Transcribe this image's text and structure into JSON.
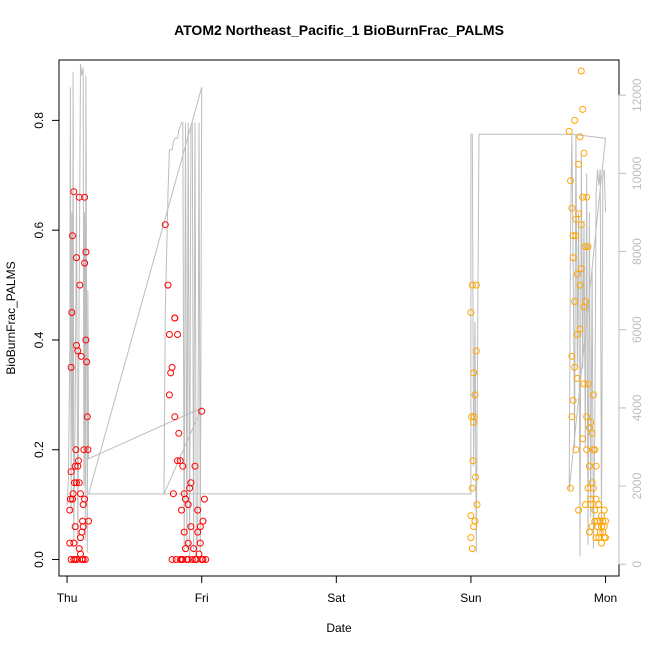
{
  "chart_data": {
    "type": "scatter",
    "title": "ATOM2 Northeast_Pacific_1 BioBurnFrac_PALMS",
    "xlabel": "Date",
    "ylabel": "BioBurnFrac_PALMS",
    "x_ticks": [
      "Thu",
      "Fri",
      "Sat",
      "Sun",
      "Mon"
    ],
    "xlim": [
      -0.06,
      4.1
    ],
    "ylim": [
      -0.03,
      0.91
    ],
    "y_ticks": [
      0.0,
      0.2,
      0.4,
      0.6,
      0.8
    ],
    "y2lim": [
      -300,
      12900
    ],
    "y2_ticks": [
      0,
      2000,
      4000,
      6000,
      8000,
      10000,
      12000
    ],
    "colors": {
      "series_red": "#ff0000",
      "series_orange": "#ffa500",
      "altitude_line": "#bdbdbd",
      "axis": "#000000"
    },
    "series": [
      {
        "color": "#ff0000",
        "points": [
          [
            0.02,
            0.09
          ],
          [
            0.02,
            0.03
          ],
          [
            0.025,
            0.11
          ],
          [
            0.03,
            0.16
          ],
          [
            0.03,
            0.35
          ],
          [
            0.035,
            0.45
          ],
          [
            0.04,
            0.59
          ],
          [
            0.045,
            0.12
          ],
          [
            0.05,
            0.67
          ],
          [
            0.05,
            0.0
          ],
          [
            0.055,
            0.14
          ],
          [
            0.06,
            0.17
          ],
          [
            0.06,
            0.06
          ],
          [
            0.065,
            0.2
          ],
          [
            0.07,
            0.39
          ],
          [
            0.07,
            0.55
          ],
          [
            0.075,
            0.0
          ],
          [
            0.08,
            0.38
          ],
          [
            0.085,
            0.18
          ],
          [
            0.09,
            0.02
          ],
          [
            0.09,
            0.66
          ],
          [
            0.095,
            0.5
          ],
          [
            0.1,
            0.12
          ],
          [
            0.1,
            0.04
          ],
          [
            0.105,
            0.37
          ],
          [
            0.11,
            0.0
          ],
          [
            0.115,
            0.07
          ],
          [
            0.12,
            0.06
          ],
          [
            0.12,
            0.1
          ],
          [
            0.125,
            0.2
          ],
          [
            0.13,
            0.66
          ],
          [
            0.13,
            0.54
          ],
          [
            0.135,
            0.0
          ],
          [
            0.14,
            0.4
          ],
          [
            0.14,
            0.56
          ],
          [
            0.145,
            0.36
          ],
          [
            0.15,
            0.26
          ],
          [
            0.155,
            0.2
          ],
          [
            0.16,
            0.07
          ],
          [
            0.03,
            0.0
          ],
          [
            0.04,
            0.11
          ],
          [
            0.06,
            0.0
          ],
          [
            0.08,
            0.17
          ],
          [
            0.1,
            0.01
          ],
          [
            0.11,
            0.05
          ],
          [
            0.12,
            0.0
          ],
          [
            0.07,
            0.14
          ],
          [
            0.13,
            0.11
          ],
          [
            0.05,
            0.03
          ],
          [
            0.09,
            0.14
          ],
          [
            0.73,
            0.61
          ],
          [
            0.75,
            0.5
          ],
          [
            0.76,
            0.41
          ],
          [
            0.77,
            0.34
          ],
          [
            0.78,
            0.0
          ],
          [
            0.79,
            0.12
          ],
          [
            0.8,
            0.26
          ],
          [
            0.8,
            0.44
          ],
          [
            0.81,
            0.0
          ],
          [
            0.82,
            0.41
          ],
          [
            0.83,
            0.23
          ],
          [
            0.84,
            0.18
          ],
          [
            0.85,
            0.09
          ],
          [
            0.85,
            0.0
          ],
          [
            0.86,
            0.17
          ],
          [
            0.87,
            0.12
          ],
          [
            0.87,
            0.05
          ],
          [
            0.88,
            0.11
          ],
          [
            0.89,
            0.0
          ],
          [
            0.9,
            0.03
          ],
          [
            0.9,
            0.1
          ],
          [
            0.91,
            0.13
          ],
          [
            0.92,
            0.06
          ],
          [
            0.93,
            0.0
          ],
          [
            0.94,
            0.02
          ],
          [
            0.95,
            0.17
          ],
          [
            0.96,
            0.0
          ],
          [
            0.97,
            0.05
          ],
          [
            0.97,
            0.09
          ],
          [
            0.98,
            0.01
          ],
          [
            0.99,
            0.06
          ],
          [
            1.0,
            0.27
          ],
          [
            1.0,
            0.0
          ],
          [
            1.01,
            0.07
          ],
          [
            1.02,
            0.11
          ],
          [
            1.03,
            0.0
          ],
          [
            0.76,
            0.3
          ],
          [
            0.78,
            0.35
          ],
          [
            0.82,
            0.18
          ],
          [
            0.86,
            0.0
          ],
          [
            0.88,
            0.02
          ],
          [
            0.92,
            0.14
          ],
          [
            0.95,
            0.0
          ],
          [
            0.99,
            0.03
          ],
          [
            1.01,
            0.0
          ],
          [
            0.8,
            0.44
          ],
          [
            0.84,
            0.0
          ],
          [
            0.9,
            0.0
          ]
        ]
      },
      {
        "color": "#ffa500",
        "points": [
          [
            3.0,
            0.08
          ],
          [
            3.0,
            0.45
          ],
          [
            3.005,
            0.26
          ],
          [
            3.01,
            0.5
          ],
          [
            3.01,
            0.02
          ],
          [
            3.015,
            0.18
          ],
          [
            3.02,
            0.25
          ],
          [
            3.02,
            0.06
          ],
          [
            3.025,
            0.26
          ],
          [
            3.03,
            0.3
          ],
          [
            3.035,
            0.15
          ],
          [
            3.04,
            0.5
          ],
          [
            3.04,
            0.38
          ],
          [
            3.045,
            0.1
          ],
          [
            3.0,
            0.04
          ],
          [
            3.01,
            0.13
          ],
          [
            3.03,
            0.07
          ],
          [
            3.02,
            0.34
          ],
          [
            3.73,
            0.78
          ],
          [
            3.74,
            0.69
          ],
          [
            3.74,
            0.13
          ],
          [
            3.75,
            0.64
          ],
          [
            3.75,
            0.37
          ],
          [
            3.76,
            0.55
          ],
          [
            3.76,
            0.29
          ],
          [
            3.77,
            0.8
          ],
          [
            3.77,
            0.47
          ],
          [
            3.78,
            0.2
          ],
          [
            3.78,
            0.59
          ],
          [
            3.79,
            0.52
          ],
          [
            3.79,
            0.33
          ],
          [
            3.8,
            0.72
          ],
          [
            3.8,
            0.09
          ],
          [
            3.81,
            0.77
          ],
          [
            3.81,
            0.42
          ],
          [
            3.82,
            0.89
          ],
          [
            3.82,
            0.61
          ],
          [
            3.83,
            0.82
          ],
          [
            3.83,
            0.22
          ],
          [
            3.84,
            0.74
          ],
          [
            3.84,
            0.46
          ],
          [
            3.85,
            0.1
          ],
          [
            3.85,
            0.57
          ],
          [
            3.86,
            0.66
          ],
          [
            3.86,
            0.2
          ],
          [
            3.87,
            0.13
          ],
          [
            3.87,
            0.32
          ],
          [
            3.88,
            0.17
          ],
          [
            3.88,
            0.05
          ],
          [
            3.89,
            0.25
          ],
          [
            3.89,
            0.1
          ],
          [
            3.9,
            0.23
          ],
          [
            3.9,
            0.06
          ],
          [
            3.91,
            0.2
          ],
          [
            3.91,
            0.13
          ],
          [
            3.92,
            0.09
          ],
          [
            3.92,
            0.07
          ],
          [
            3.93,
            0.04
          ],
          [
            3.93,
            0.11
          ],
          [
            3.94,
            0.07
          ],
          [
            3.94,
            0.06
          ],
          [
            3.95,
            0.1
          ],
          [
            3.95,
            0.04
          ],
          [
            3.96,
            0.07
          ],
          [
            3.96,
            0.05
          ],
          [
            3.97,
            0.06
          ],
          [
            3.97,
            0.03
          ],
          [
            3.98,
            0.07
          ],
          [
            3.98,
            0.05
          ],
          [
            3.99,
            0.04
          ],
          [
            3.99,
            0.06
          ],
          [
            4.0,
            0.07
          ],
          [
            4.0,
            0.04
          ],
          [
            3.75,
            0.26
          ],
          [
            3.77,
            0.35
          ],
          [
            3.79,
            0.41
          ],
          [
            3.81,
            0.5
          ],
          [
            3.83,
            0.66
          ],
          [
            3.85,
            0.47
          ],
          [
            3.87,
            0.57
          ],
          [
            3.89,
            0.11
          ],
          [
            3.91,
            0.3
          ],
          [
            3.93,
            0.17
          ],
          [
            3.95,
            0.1
          ],
          [
            3.97,
            0.08
          ],
          [
            3.99,
            0.09
          ],
          [
            3.76,
            0.59
          ],
          [
            3.78,
            0.62
          ],
          [
            3.8,
            0.63
          ],
          [
            3.82,
            0.53
          ],
          [
            3.84,
            0.32
          ],
          [
            3.86,
            0.26
          ],
          [
            3.88,
            0.24
          ],
          [
            3.9,
            0.14
          ],
          [
            3.92,
            0.2
          ]
        ]
      }
    ],
    "altitude_line": [
      [
        0.0,
        1500
      ],
      [
        0.01,
        2200
      ],
      [
        0.02,
        5500
      ],
      [
        0.025,
        12200
      ],
      [
        0.03,
        1300
      ],
      [
        0.035,
        9000
      ],
      [
        0.04,
        3000
      ],
      [
        0.045,
        12600
      ],
      [
        0.05,
        600
      ],
      [
        0.06,
        4000
      ],
      [
        0.07,
        9500
      ],
      [
        0.08,
        500
      ],
      [
        0.09,
        7000
      ],
      [
        0.1,
        12800
      ],
      [
        0.11,
        12500
      ],
      [
        0.12,
        12700
      ],
      [
        0.125,
        2000
      ],
      [
        0.13,
        9000
      ],
      [
        0.135,
        600
      ],
      [
        0.14,
        12500
      ],
      [
        0.15,
        300
      ],
      [
        0.155,
        7000
      ],
      [
        0.16,
        2700
      ],
      [
        0.16,
        2700
      ],
      [
        1.0,
        4000
      ],
      [
        0.72,
        1800
      ],
      [
        0.73,
        6500
      ],
      [
        0.74,
        8000
      ],
      [
        0.75,
        9500
      ],
      [
        0.76,
        10600
      ],
      [
        0.78,
        10600
      ],
      [
        0.79,
        10800
      ],
      [
        0.8,
        10900
      ],
      [
        0.82,
        10900
      ],
      [
        0.83,
        11100
      ],
      [
        0.84,
        11200
      ],
      [
        0.85,
        11300
      ],
      [
        0.86,
        11300
      ],
      [
        0.87,
        300
      ],
      [
        0.88,
        11300
      ],
      [
        0.89,
        400
      ],
      [
        0.9,
        11300
      ],
      [
        0.91,
        200
      ],
      [
        0.92,
        11200
      ],
      [
        0.93,
        11300
      ],
      [
        0.94,
        300
      ],
      [
        0.95,
        11300
      ],
      [
        0.96,
        200
      ],
      [
        0.97,
        700
      ],
      [
        0.98,
        11300
      ],
      [
        0.99,
        300
      ],
      [
        1.0,
        12200
      ],
      [
        0.16,
        1800
      ],
      [
        2.25,
        1800
      ],
      [
        3.0,
        1800
      ],
      [
        3.0,
        11000
      ],
      [
        3.01,
        11000
      ],
      [
        3.02,
        2500
      ],
      [
        3.03,
        6200
      ],
      [
        3.04,
        300
      ],
      [
        3.05,
        6000
      ],
      [
        3.06,
        11000
      ],
      [
        3.75,
        11000
      ],
      [
        4.0,
        10900
      ],
      [
        3.73,
        1900
      ],
      [
        3.74,
        8500
      ],
      [
        3.75,
        11000
      ],
      [
        3.76,
        7500
      ],
      [
        3.77,
        3000
      ],
      [
        3.78,
        11000
      ],
      [
        3.79,
        5000
      ],
      [
        3.8,
        9000
      ],
      [
        3.81,
        200
      ],
      [
        3.82,
        10500
      ],
      [
        3.83,
        5000
      ],
      [
        3.84,
        8800
      ],
      [
        3.85,
        3000
      ],
      [
        3.86,
        10000
      ],
      [
        3.87,
        500
      ],
      [
        3.88,
        9000
      ],
      [
        3.89,
        1200
      ],
      [
        3.9,
        7600
      ],
      [
        3.91,
        400
      ],
      [
        3.92,
        3500
      ],
      [
        3.93,
        9500
      ],
      [
        3.94,
        10100
      ],
      [
        3.95,
        9700
      ],
      [
        3.96,
        10100
      ],
      [
        3.97,
        800
      ],
      [
        3.98,
        9900
      ],
      [
        3.99,
        10100
      ],
      [
        4.0,
        9000
      ]
    ]
  }
}
